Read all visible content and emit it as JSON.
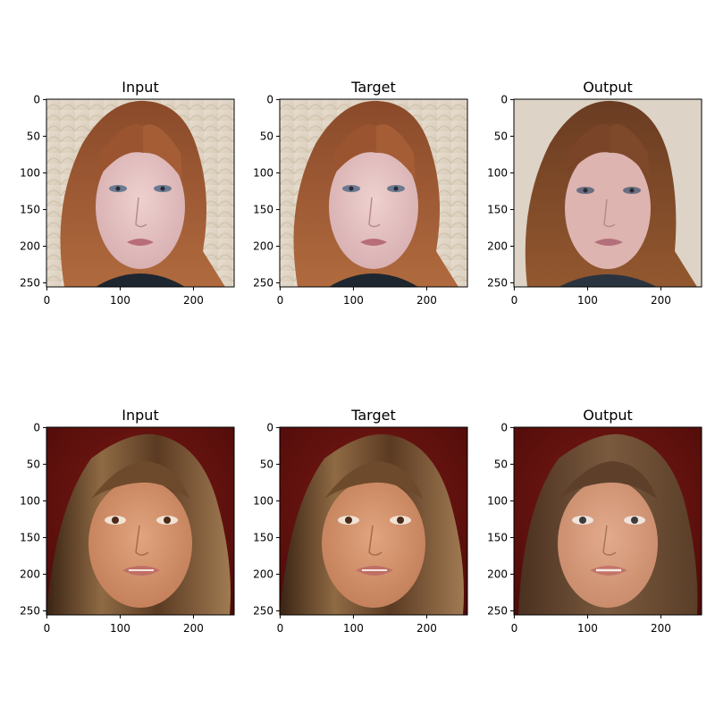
{
  "figure": {
    "rows": [
      {
        "panels": [
          {
            "title": "Input",
            "image": "woman with long auburn hair, pale skin, patterned light background"
          },
          {
            "title": "Target",
            "image": "woman with long auburn hair, pale skin, patterned light background"
          },
          {
            "title": "Output",
            "image": "generated face with long brown hair, smoothed light background"
          }
        ]
      },
      {
        "panels": [
          {
            "title": "Input",
            "image": "woman with long brown highlighted hair, tanned skin, dark red background"
          },
          {
            "title": "Target",
            "image": "woman with long brown highlighted hair, tanned skin, dark red background"
          },
          {
            "title": "Output",
            "image": "generated face with long brown hair, dark red background"
          }
        ]
      }
    ],
    "y_ticks": [
      "0",
      "50",
      "100",
      "150",
      "200",
      "250"
    ],
    "x_ticks": [
      "0",
      "100",
      "200"
    ]
  }
}
